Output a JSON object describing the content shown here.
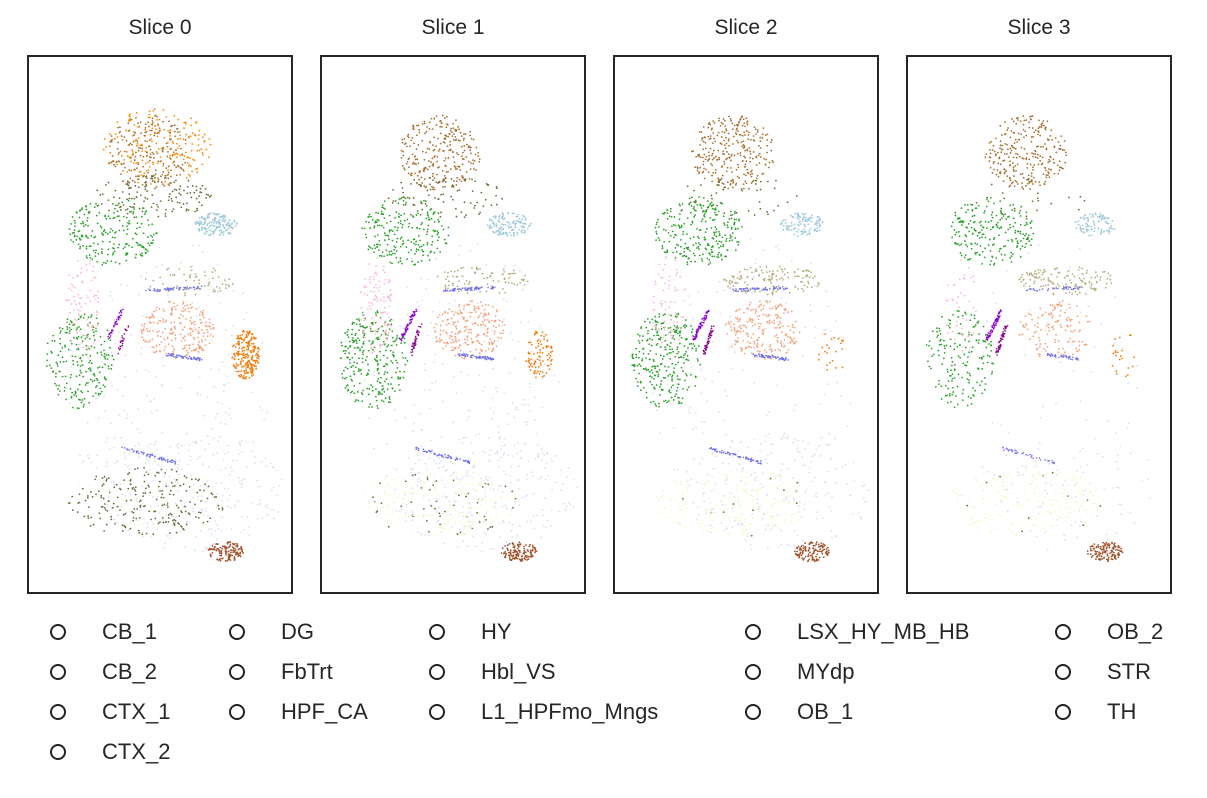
{
  "chart_data": {
    "type": "scatter",
    "panels": [
      {
        "title": "Slice 0"
      },
      {
        "title": "Slice 1"
      },
      {
        "title": "Slice 2"
      },
      {
        "title": "Slice 3"
      }
    ],
    "xlabel": "",
    "ylabel": "",
    "grid": false,
    "legend_placement": "bottom",
    "legend": [
      {
        "name": "CB_1",
        "color": "#f7f6d2"
      },
      {
        "name": "CB_2",
        "color": "#6b6a3a"
      },
      {
        "name": "CTX_1",
        "color": "#2ca02c"
      },
      {
        "name": "CTX_2",
        "color": "#5f6330"
      },
      {
        "name": "DG",
        "color": "#8b0a8b"
      },
      {
        "name": "FbTrt",
        "color": "#b3ae80"
      },
      {
        "name": "HPF_CA",
        "color": "#8a00c8"
      },
      {
        "name": "HY",
        "color": "#f07c0a"
      },
      {
        "name": "Hbl_VS",
        "color": "#6e70e8"
      },
      {
        "name": "L1_HPFmo_Mngs",
        "color": "#f7bcc8"
      },
      {
        "name": "LSX_HY_MB_HB",
        "color": "#dcdef0"
      },
      {
        "name": "MYdp",
        "color": "#a0522d"
      },
      {
        "name": "OB_1",
        "color": "#a67030"
      },
      {
        "name": "OB_2",
        "color": "#f28c0c"
      },
      {
        "name": "STR",
        "color": "#9cc8d8"
      },
      {
        "name": "TH",
        "color": "#f0a37e"
      }
    ]
  }
}
